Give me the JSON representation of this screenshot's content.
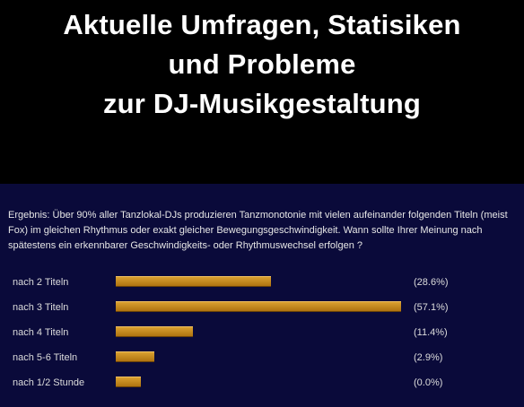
{
  "headline": {
    "line1": "Aktuelle Umfragen, Statisiken",
    "line2": "und Probleme",
    "line3": "zur DJ-Musikgestaltung"
  },
  "poll": {
    "question": "Ergebnis: Über 90% aller Tanzlokal-DJs produzieren Tanzmonotonie mit vielen aufeinander folgenden Titeln (meist Fox) im gleichen Rhythmus oder exakt gleicher Bewegungsgeschwindigkeit. Wann sollte Ihrer Meinung nach spätestens ein erkennbarer Geschwindigkeits- oder Rhythmuswechsel erfolgen ?",
    "options": [
      {
        "label": "nach 2 Titeln",
        "percent": 28.6,
        "percent_text": "(28.6%)"
      },
      {
        "label": "nach 3 Titeln",
        "percent": 57.1,
        "percent_text": "(57.1%)"
      },
      {
        "label": "nach 4 Titeln",
        "percent": 11.4,
        "percent_text": "(11.4%)"
      },
      {
        "label": "nach 5-6 Titeln",
        "percent": 2.9,
        "percent_text": "(2.9%)"
      },
      {
        "label": "nach 1/2 Stunde",
        "percent": 0.0,
        "percent_text": "(0.0%)"
      }
    ]
  },
  "colors": {
    "background": "#000000",
    "poll_background": "#0a0a3a",
    "bar": "#c88a20",
    "text": "#dcdcdc"
  }
}
